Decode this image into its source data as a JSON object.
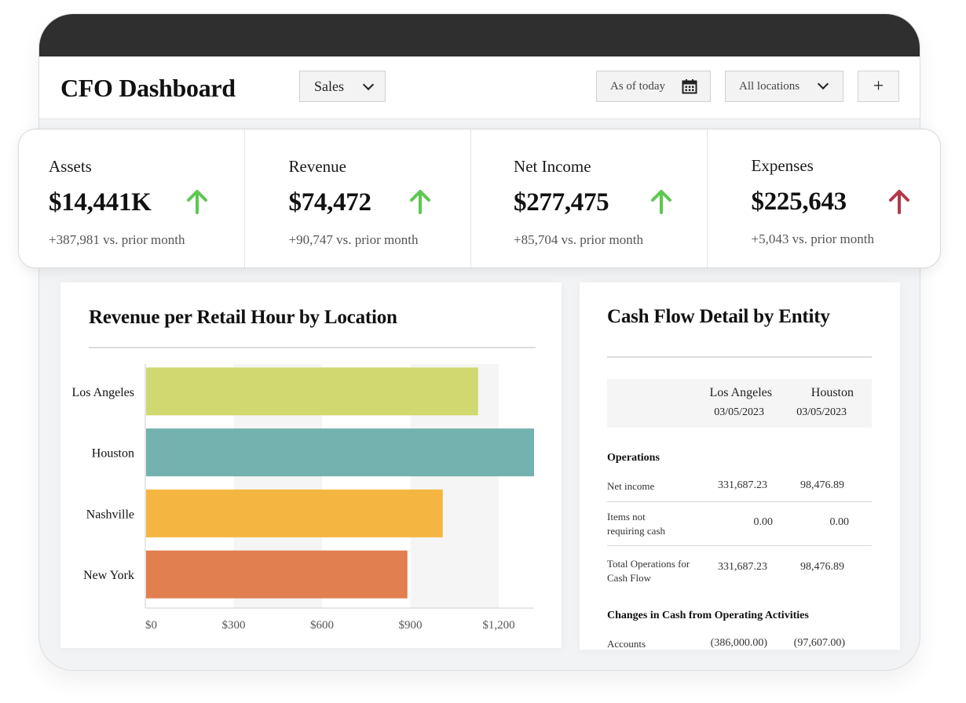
{
  "header": {
    "title": "CFO Dashboard",
    "view_select": "Sales",
    "date_filter": "As of today",
    "location_filter": "All locations",
    "add_label": "+"
  },
  "kpis": [
    {
      "label": "Assets",
      "value": "$14,441K",
      "change": "+387,981 vs. prior month",
      "trend": "up",
      "color": "#5cc84f"
    },
    {
      "label": "Revenue",
      "value": "$74,472",
      "change": "+90,747 vs. prior month",
      "trend": "up",
      "color": "#5cc84f"
    },
    {
      "label": "Net Income",
      "value": "$277,475",
      "change": "+85,704 vs. prior month",
      "trend": "up",
      "color": "#5cc84f"
    },
    {
      "label": "Expenses",
      "value": "$225,643",
      "change": "+5,043 vs. prior month",
      "trend": "up",
      "color": "#b4384a"
    }
  ],
  "revenue_chart": {
    "title": "Revenue per Retail Hour by Location"
  },
  "chart_data": {
    "type": "bar",
    "orientation": "horizontal",
    "title": "Revenue per Retail Hour by Location",
    "categories": [
      "Los Angeles",
      "Houston",
      "Nashville",
      "New York"
    ],
    "values": [
      1130,
      1320,
      1010,
      890
    ],
    "colors": [
      "#cfd96f",
      "#74b2b0",
      "#f5b641",
      "#e17f4f"
    ],
    "xlim": [
      0,
      1320
    ],
    "ticks": [
      0,
      300,
      600,
      900,
      1200
    ],
    "tick_labels": [
      "$0",
      "$300",
      "$600",
      "$900",
      "$1,200"
    ],
    "xlabel": "",
    "ylabel": "",
    "legend": "none"
  },
  "cash_flow": {
    "title": "Cash Flow Detail by Entity",
    "columns": [
      {
        "name": "Los Angeles",
        "date": "03/05/2023"
      },
      {
        "name": "Houston",
        "date": "03/05/2023"
      }
    ],
    "sections": [
      {
        "title": "Operations",
        "rows": [
          {
            "label": "Net income",
            "values": [
              "331,687.23",
              "98,476.89"
            ]
          },
          {
            "label": "Items not requiring cash",
            "values": [
              "0.00",
              "0.00"
            ]
          },
          {
            "label": "Total Operations for Cash Flow",
            "values": [
              "331,687.23",
              "98,476.89"
            ]
          }
        ]
      },
      {
        "title": "Changes in Cash from Operating Activities",
        "rows": [
          {
            "label": "Accounts",
            "values": [
              "(386,000.00)",
              "(97,607.00)"
            ]
          }
        ]
      }
    ]
  }
}
